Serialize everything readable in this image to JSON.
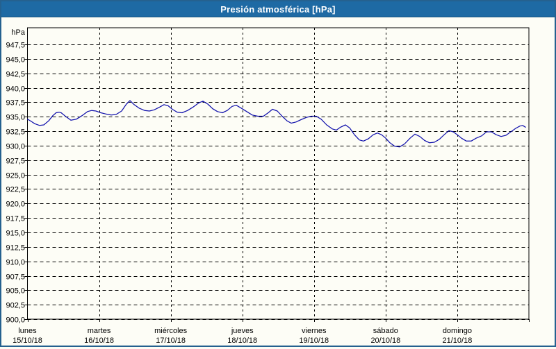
{
  "window": {
    "title": "Presión atmosférica [hPa]"
  },
  "colors": {
    "titlebar_bg": "#1e6aa4",
    "titlebar_text": "#ffffff",
    "frame_border": "#25618f",
    "panel_bg": "#fdfdf6",
    "grid": "#000000",
    "axis_text": "#000000",
    "series_line": "#1111ac"
  },
  "chart_data": {
    "type": "line",
    "title": "Presión atmosférica [hPa]",
    "unit_label": "hPa",
    "decimal_separator": ",",
    "grid": "dashed",
    "legend": "none",
    "ylim": [
      900,
      950.4
    ],
    "ytick_step": 2.5,
    "ytick_labels": [
      "947,5",
      "945,0",
      "942,5",
      "940,0",
      "937,5",
      "935,0",
      "932,5",
      "930,0",
      "927,5",
      "925,0",
      "922,5",
      "920,0",
      "917,5",
      "915,0",
      "912,5",
      "910,0",
      "907,5",
      "905,0",
      "902,5",
      "900,0"
    ],
    "x_days": [
      {
        "name": "lunes",
        "date": "15/10/18"
      },
      {
        "name": "martes",
        "date": "16/10/18"
      },
      {
        "name": "miércoles",
        "date": "17/10/18"
      },
      {
        "name": "jueves",
        "date": "18/10/18"
      },
      {
        "name": "viernes",
        "date": "19/10/18"
      },
      {
        "name": "sábado",
        "date": "20/10/18"
      },
      {
        "name": "domingo",
        "date": "21/10/18"
      }
    ],
    "series": [
      {
        "name": "Presión atmosférica",
        "color": "#1111ac",
        "x_unit": "days_from_monday_00h",
        "points": [
          [
            0.0,
            934.6
          ],
          [
            0.053,
            934.2
          ],
          [
            0.102,
            933.8
          ],
          [
            0.17,
            933.5
          ],
          [
            0.228,
            933.6
          ],
          [
            0.296,
            934.3
          ],
          [
            0.354,
            935.2
          ],
          [
            0.4,
            935.7
          ],
          [
            0.44,
            935.8
          ],
          [
            0.471,
            935.7
          ],
          [
            0.539,
            935.0
          ],
          [
            0.606,
            934.4
          ],
          [
            0.684,
            934.6
          ],
          [
            0.762,
            935.2
          ],
          [
            0.839,
            935.9
          ],
          [
            0.897,
            936.1
          ],
          [
            0.956,
            936.0
          ],
          [
            1.024,
            935.7
          ],
          [
            1.091,
            935.5
          ],
          [
            1.169,
            935.3
          ],
          [
            1.237,
            935.4
          ],
          [
            1.315,
            936.0
          ],
          [
            1.382,
            937.2
          ],
          [
            1.431,
            937.8
          ],
          [
            1.489,
            937.1
          ],
          [
            1.557,
            936.5
          ],
          [
            1.635,
            936.1
          ],
          [
            1.703,
            936.0
          ],
          [
            1.77,
            936.2
          ],
          [
            1.848,
            936.7
          ],
          [
            1.906,
            937.1
          ],
          [
            1.965,
            936.9
          ],
          [
            2.023,
            936.3
          ],
          [
            2.091,
            935.8
          ],
          [
            2.159,
            935.7
          ],
          [
            2.236,
            936.1
          ],
          [
            2.314,
            936.7
          ],
          [
            2.392,
            937.4
          ],
          [
            2.45,
            937.7
          ],
          [
            2.518,
            937.2
          ],
          [
            2.586,
            936.4
          ],
          [
            2.653,
            935.9
          ],
          [
            2.721,
            935.7
          ],
          [
            2.789,
            936.1
          ],
          [
            2.857,
            936.8
          ],
          [
            2.915,
            937.0
          ],
          [
            2.983,
            936.5
          ],
          [
            3.061,
            935.9
          ],
          [
            3.139,
            935.3
          ],
          [
            3.216,
            935.1
          ],
          [
            3.294,
            935.1
          ],
          [
            3.362,
            935.7
          ],
          [
            3.42,
            936.3
          ],
          [
            3.488,
            936.0
          ],
          [
            3.556,
            935.1
          ],
          [
            3.624,
            934.3
          ],
          [
            3.682,
            933.9
          ],
          [
            3.75,
            934.1
          ],
          [
            3.818,
            934.5
          ],
          [
            3.895,
            934.9
          ],
          [
            3.963,
            935.1
          ],
          [
            4.031,
            935.1
          ],
          [
            4.099,
            934.6
          ],
          [
            4.177,
            933.6
          ],
          [
            4.255,
            932.9
          ],
          [
            4.313,
            932.7
          ],
          [
            4.371,
            933.2
          ],
          [
            4.439,
            933.6
          ],
          [
            4.497,
            933.1
          ],
          [
            4.565,
            931.9
          ],
          [
            4.633,
            931.0
          ],
          [
            4.691,
            930.8
          ],
          [
            4.759,
            931.2
          ],
          [
            4.827,
            931.9
          ],
          [
            4.885,
            932.2
          ],
          [
            4.943,
            931.9
          ],
          [
            5.001,
            931.3
          ],
          [
            5.06,
            930.5
          ],
          [
            5.127,
            929.9
          ],
          [
            5.195,
            929.8
          ],
          [
            5.263,
            930.3
          ],
          [
            5.341,
            931.3
          ],
          [
            5.409,
            932.0
          ],
          [
            5.477,
            931.6
          ],
          [
            5.545,
            930.9
          ],
          [
            5.613,
            930.5
          ],
          [
            5.681,
            930.6
          ],
          [
            5.749,
            931.1
          ],
          [
            5.817,
            931.9
          ],
          [
            5.884,
            932.6
          ],
          [
            5.943,
            932.4
          ],
          [
            6.001,
            931.9
          ],
          [
            6.059,
            931.3
          ],
          [
            6.127,
            930.8
          ],
          [
            6.195,
            930.8
          ],
          [
            6.263,
            931.3
          ],
          [
            6.34,
            931.7
          ],
          [
            6.408,
            932.4
          ],
          [
            6.476,
            932.4
          ],
          [
            6.544,
            931.9
          ],
          [
            6.612,
            931.6
          ],
          [
            6.68,
            931.8
          ],
          [
            6.748,
            932.4
          ],
          [
            6.816,
            933.0
          ],
          [
            6.874,
            933.4
          ],
          [
            6.913,
            933.5
          ],
          [
            6.952,
            933.2
          ]
        ]
      }
    ]
  }
}
